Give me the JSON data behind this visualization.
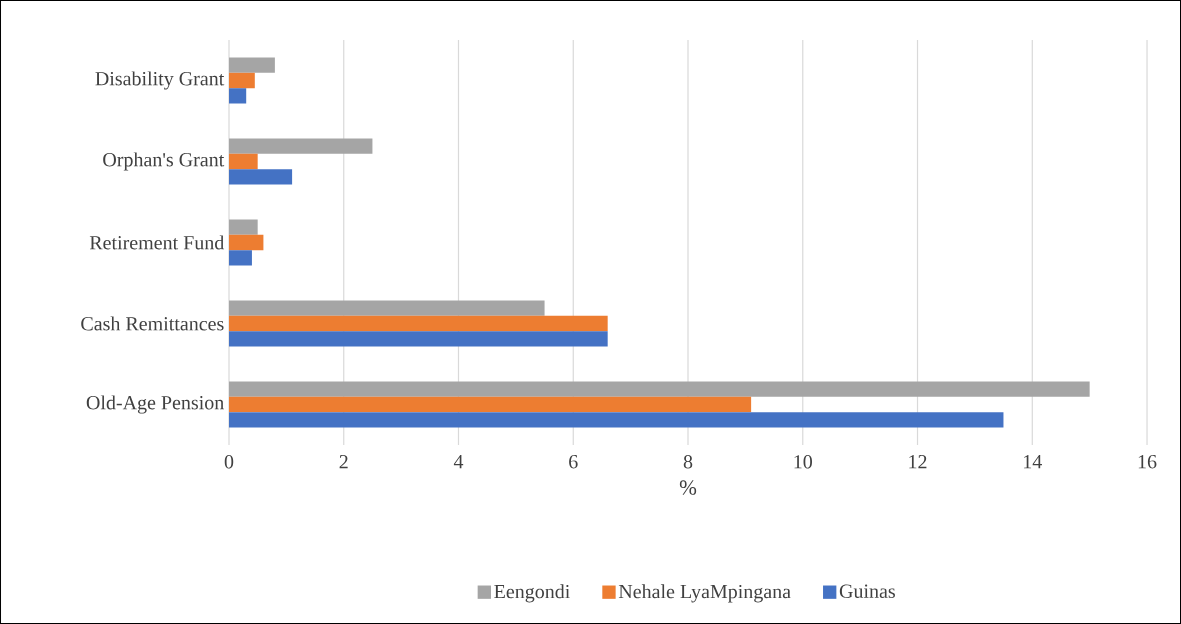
{
  "chart_data": {
    "type": "bar",
    "orientation": "horizontal",
    "xlabel": "%",
    "categories": [
      "Disability Grant",
      "Orphan's Grant",
      "Retirement Fund",
      "Cash Remittances",
      "Old-Age Pension"
    ],
    "series": [
      {
        "name": "Eengondi",
        "color": "#a5a5a5",
        "values": [
          0.8,
          2.5,
          0.5,
          5.5,
          15.0
        ]
      },
      {
        "name": "Nehale LyaMpingana",
        "color": "#ed7d31",
        "values": [
          0.45,
          0.5,
          0.6,
          6.6,
          9.1
        ]
      },
      {
        "name": "Guinas",
        "color": "#4472c4",
        "values": [
          0.3,
          1.1,
          0.4,
          6.6,
          13.5
        ]
      }
    ],
    "xlim": [
      0,
      16
    ],
    "xticks": [
      0,
      2,
      4,
      6,
      8,
      10,
      12,
      14,
      16
    ],
    "grid": "x",
    "legend": "bottom"
  }
}
